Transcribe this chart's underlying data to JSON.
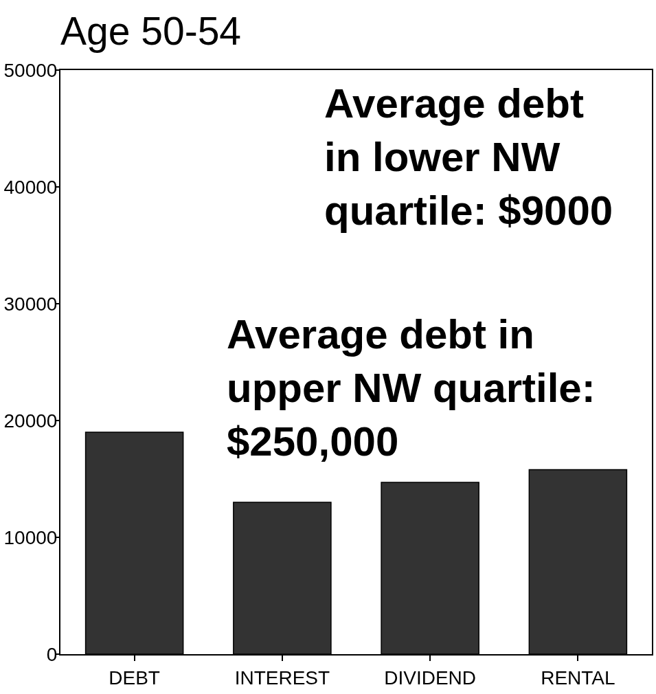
{
  "chart_data": {
    "type": "bar",
    "title": "Age 50-54",
    "categories": [
      "DEBT",
      "INTEREST",
      "DIVIDEND",
      "RENTAL"
    ],
    "values": [
      19000,
      13000,
      14700,
      15800
    ],
    "color": "#333333",
    "ylim": [
      0,
      50000
    ],
    "yticks": [
      0,
      10000,
      20000,
      30000,
      40000,
      50000
    ],
    "grid": false,
    "annotations": [
      "Average debt\nin lower NW\nquartile: $9000",
      "Average debt in\nupper NW quartile:\n$250,000"
    ]
  }
}
